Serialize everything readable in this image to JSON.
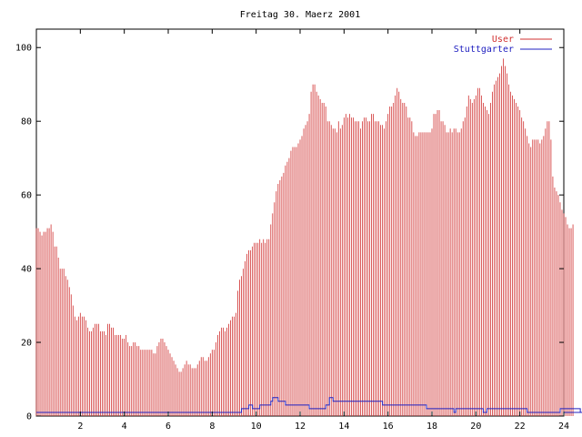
{
  "chart_data": {
    "type": "bar",
    "title": "Freitag 30. Maerz 2001",
    "xlim": [
      0,
      24
    ],
    "ylim": [
      0,
      105
    ],
    "x_ticks": [
      2,
      4,
      6,
      8,
      10,
      12,
      14,
      16,
      18,
      20,
      22,
      24
    ],
    "y_ticks": [
      0,
      20,
      40,
      60,
      80,
      100
    ],
    "legend_position": "top-right",
    "interval_minutes": 5,
    "series": [
      {
        "name": "User",
        "style": "impulses",
        "color": "#d03030",
        "values": [
          51,
          51,
          50,
          49,
          50,
          50,
          51,
          51,
          52,
          50,
          46,
          46,
          43,
          40,
          40,
          40,
          38,
          37,
          35,
          33,
          30,
          27,
          26,
          27,
          28,
          27,
          27,
          26,
          24,
          23,
          23,
          24,
          25,
          25,
          25,
          23,
          23,
          23,
          22,
          25,
          25,
          24,
          24,
          22,
          22,
          22,
          22,
          21,
          21,
          22,
          20,
          19,
          19,
          20,
          20,
          19,
          19,
          18,
          18,
          18,
          18,
          18,
          18,
          18,
          17,
          17,
          19,
          20,
          21,
          21,
          20,
          19,
          18,
          17,
          16,
          15,
          14,
          13,
          12,
          12,
          13,
          14,
          15,
          14,
          14,
          13,
          13,
          13,
          14,
          15,
          16,
          16,
          15,
          15,
          16,
          17,
          18,
          18,
          20,
          22,
          23,
          24,
          24,
          23,
          24,
          25,
          26,
          27,
          27,
          28,
          34,
          37,
          38,
          40,
          42,
          44,
          45,
          45,
          46,
          47,
          47,
          47,
          48,
          47,
          48,
          47,
          48,
          48,
          52,
          55,
          58,
          61,
          63,
          64,
          65,
          66,
          68,
          69,
          70,
          72,
          73,
          73,
          73,
          74,
          75,
          76,
          78,
          79,
          80,
          82,
          88,
          90,
          90,
          88,
          87,
          86,
          85,
          85,
          84,
          80,
          80,
          79,
          78,
          78,
          77,
          80,
          78,
          79,
          81,
          82,
          81,
          82,
          81,
          81,
          80,
          80,
          80,
          78,
          80,
          81,
          81,
          80,
          80,
          82,
          82,
          80,
          80,
          80,
          79,
          79,
          78,
          80,
          82,
          84,
          84,
          85,
          87,
          89,
          88,
          86,
          85,
          85,
          84,
          81,
          81,
          80,
          77,
          76,
          76,
          77,
          77,
          77,
          77,
          77,
          77,
          77,
          78,
          82,
          82,
          83,
          83,
          80,
          80,
          79,
          77,
          77,
          78,
          77,
          78,
          78,
          77,
          77,
          78,
          80,
          81,
          84,
          87,
          86,
          85,
          86,
          87,
          89,
          89,
          87,
          85,
          84,
          83,
          82,
          85,
          88,
          90,
          91,
          92,
          93,
          95,
          97,
          95,
          93,
          90,
          88,
          87,
          86,
          85,
          84,
          83,
          81,
          80,
          78,
          76,
          74,
          73,
          75,
          75,
          75,
          75,
          74,
          75,
          76,
          78,
          80,
          80,
          75,
          65,
          62,
          61,
          60,
          58,
          56,
          55,
          54,
          52,
          51,
          51,
          52
        ]
      },
      {
        "name": "Stuttgarter",
        "style": "lines",
        "color": "#2020c0",
        "values": [
          1,
          1,
          1,
          1,
          1,
          1,
          1,
          1,
          1,
          1,
          1,
          1,
          1,
          1,
          1,
          1,
          1,
          1,
          1,
          1,
          1,
          1,
          1,
          1,
          1,
          1,
          1,
          1,
          1,
          1,
          1,
          1,
          1,
          1,
          1,
          1,
          1,
          1,
          1,
          1,
          1,
          1,
          1,
          1,
          1,
          1,
          1,
          1,
          1,
          1,
          1,
          1,
          1,
          1,
          1,
          1,
          1,
          1,
          1,
          1,
          1,
          1,
          1,
          1,
          1,
          1,
          1,
          1,
          1,
          1,
          1,
          1,
          1,
          1,
          1,
          1,
          1,
          1,
          1,
          1,
          1,
          1,
          1,
          1,
          1,
          1,
          1,
          1,
          1,
          1,
          1,
          1,
          1,
          1,
          1,
          1,
          1,
          1,
          1,
          1,
          1,
          1,
          1,
          1,
          1,
          1,
          1,
          1,
          1,
          1,
          1,
          1,
          2,
          2,
          2,
          2,
          3,
          3,
          2,
          2,
          2,
          2,
          3,
          3,
          3,
          3,
          3,
          3,
          4,
          5,
          5,
          5,
          4,
          4,
          4,
          4,
          3,
          3,
          3,
          3,
          3,
          3,
          3,
          3,
          3,
          3,
          3,
          3,
          3,
          2,
          2,
          2,
          2,
          2,
          2,
          2,
          2,
          2,
          3,
          3,
          5,
          5,
          4,
          4,
          4,
          4,
          4,
          4,
          4,
          4,
          4,
          4,
          4,
          4,
          4,
          4,
          4,
          4,
          4,
          4,
          4,
          4,
          4,
          4,
          4,
          4,
          4,
          4,
          4,
          3,
          3,
          3,
          3,
          3,
          3,
          3,
          3,
          3,
          3,
          3,
          3,
          3,
          3,
          3,
          3,
          3,
          3,
          3,
          3,
          3,
          3,
          3,
          3,
          2,
          2,
          2,
          2,
          2,
          2,
          2,
          2,
          2,
          2,
          2,
          2,
          2,
          2,
          2,
          1,
          2,
          2,
          2,
          2,
          2,
          2,
          2,
          2,
          2,
          2,
          2,
          2,
          2,
          2,
          2,
          1,
          1,
          2,
          2,
          2,
          2,
          2,
          2,
          2,
          2,
          2,
          2,
          2,
          2,
          2,
          2,
          2,
          2,
          2,
          2,
          2,
          2,
          2,
          2,
          1,
          1,
          1,
          1,
          1,
          1,
          1,
          1,
          1,
          1,
          1,
          1,
          1,
          1,
          1,
          1,
          1,
          1,
          2,
          2,
          2,
          2,
          2,
          2,
          2,
          2,
          2,
          2,
          2,
          1,
          1,
          1,
          1,
          1,
          1,
          1,
          1,
          1,
          1,
          1,
          1,
          1
        ]
      }
    ]
  }
}
